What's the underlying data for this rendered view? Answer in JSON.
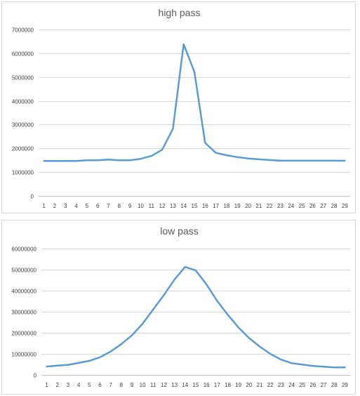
{
  "chart_data": [
    {
      "type": "line",
      "title": "high pass",
      "categories": [
        "1",
        "2",
        "3",
        "4",
        "5",
        "6",
        "7",
        "8",
        "9",
        "10",
        "11",
        "12",
        "13",
        "14",
        "15",
        "16",
        "17",
        "18",
        "19",
        "20",
        "21",
        "22",
        "23",
        "24",
        "25",
        "26",
        "27",
        "28",
        "29"
      ],
      "y_ticks": [
        "0",
        "1000000",
        "2000000",
        "3000000",
        "4000000",
        "5000000",
        "6000000",
        "7000000"
      ],
      "ylim": [
        0,
        7000000
      ],
      "grid": true,
      "legend": "none",
      "series": [
        {
          "color": "#5b9bd5",
          "values": [
            1470000,
            1470000,
            1470000,
            1470000,
            1500000,
            1500000,
            1530000,
            1500000,
            1500000,
            1560000,
            1680000,
            1940000,
            2820000,
            6380000,
            5220000,
            2230000,
            1810000,
            1710000,
            1630000,
            1570000,
            1540000,
            1510000,
            1480000,
            1480000,
            1480000,
            1480000,
            1480000,
            1480000,
            1480000
          ]
        }
      ]
    },
    {
      "type": "line",
      "title": "low pass",
      "categories": [
        "1",
        "2",
        "3",
        "4",
        "5",
        "6",
        "7",
        "8",
        "9",
        "10",
        "11",
        "12",
        "13",
        "14",
        "15",
        "16",
        "17",
        "18",
        "19",
        "20",
        "21",
        "22",
        "23",
        "24",
        "25",
        "26",
        "27",
        "28",
        "29"
      ],
      "y_ticks": [
        "0",
        "10000000",
        "20000000",
        "30000000",
        "40000000",
        "50000000",
        "60000000"
      ],
      "ylim": [
        0,
        60000000
      ],
      "grid": true,
      "legend": "none",
      "series": [
        {
          "color": "#5b9bd5",
          "values": [
            4000000,
            4400000,
            4800000,
            5700000,
            6700000,
            8400000,
            11100000,
            14600000,
            18800000,
            24300000,
            31100000,
            37900000,
            45300000,
            51300000,
            49600000,
            43000000,
            35200000,
            28600000,
            22600000,
            17500000,
            13500000,
            10000000,
            7300000,
            5600000,
            4900000,
            4300000,
            3900000,
            3600000,
            3600000
          ]
        }
      ]
    }
  ]
}
